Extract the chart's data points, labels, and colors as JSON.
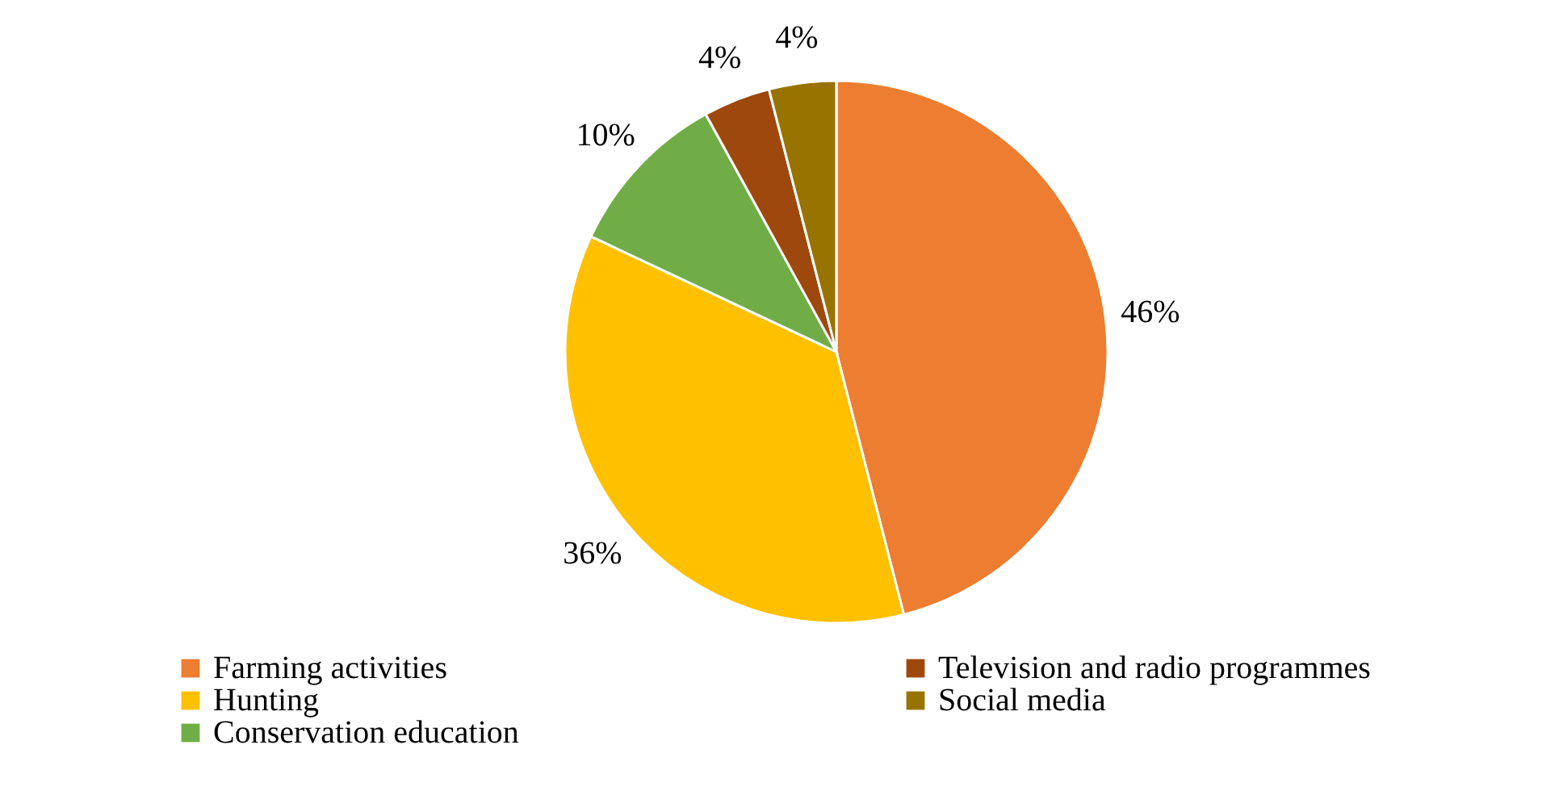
{
  "chart_data": {
    "type": "pie",
    "categories": [
      "Farming activities",
      "Hunting",
      "Conservation education",
      "Television and radio programmes",
      "Social media"
    ],
    "values": [
      46,
      36,
      10,
      4,
      4
    ],
    "value_labels": [
      "46%",
      "36%",
      "10%",
      "4%",
      "4%"
    ],
    "colors": [
      "#ed7d31",
      "#ffc000",
      "#70ad47",
      "#9e480e",
      "#997300"
    ],
    "legend": "bottom"
  }
}
